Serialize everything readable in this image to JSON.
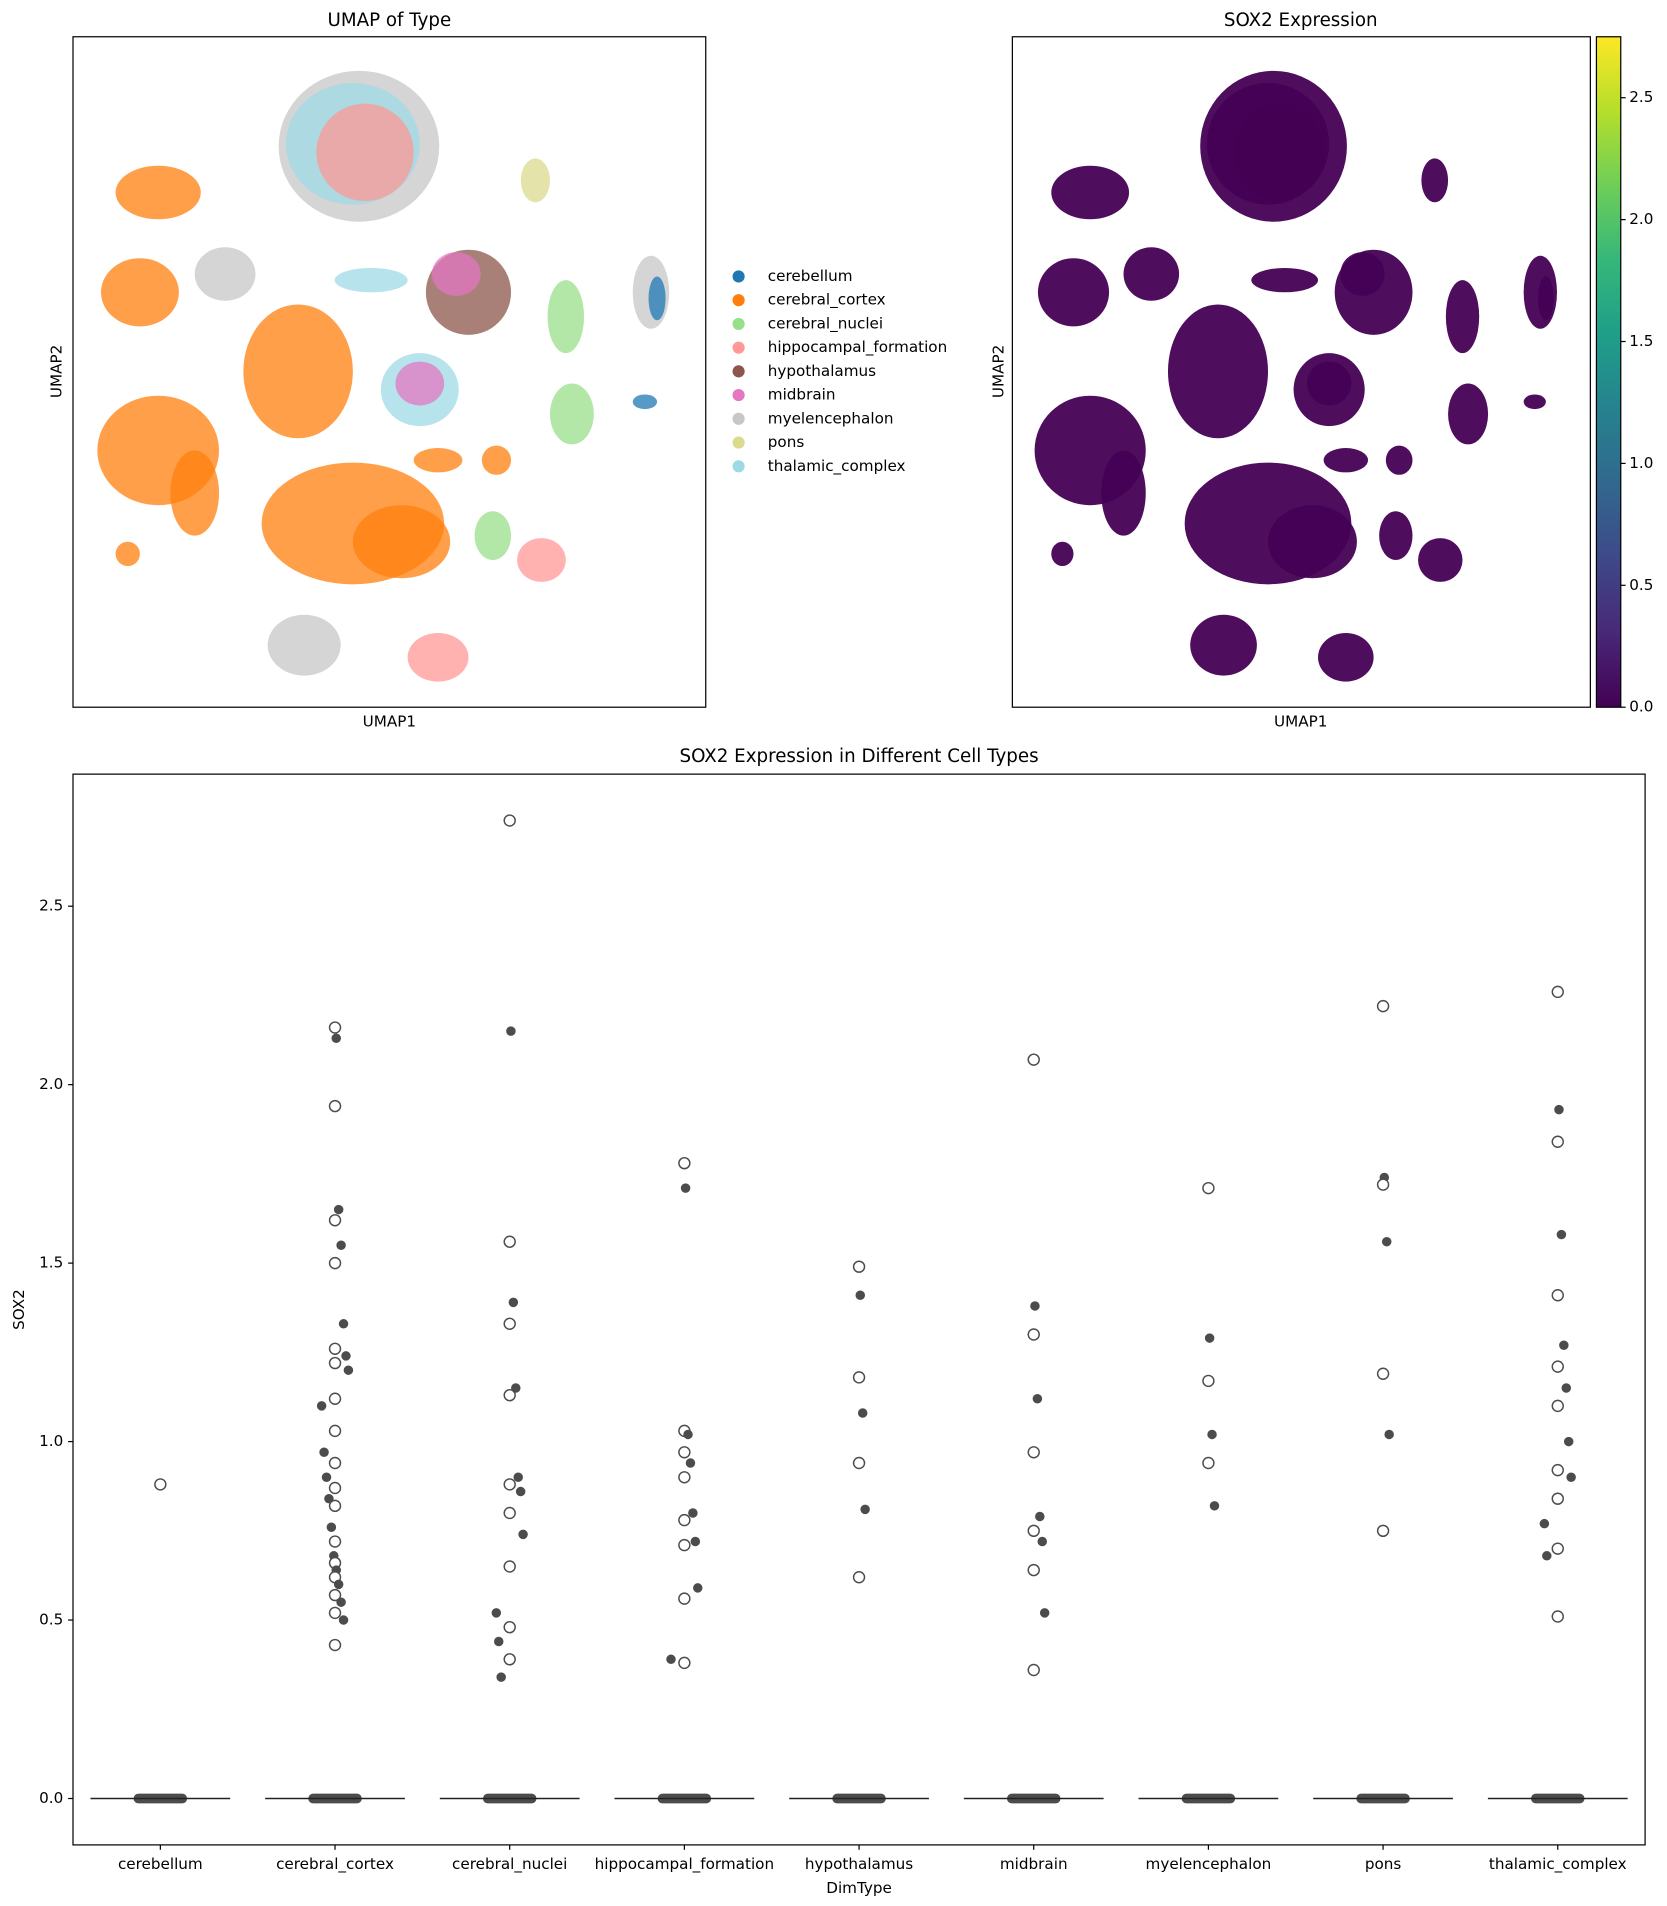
{
  "chart_data": [
    {
      "type": "scatter",
      "title": "UMAP of Type",
      "x_label": "UMAP1",
      "y_label": "UMAP2",
      "series": [
        {
          "name": "cerebellum",
          "color": "#1f77b4"
        },
        {
          "name": "cerebral_cortex",
          "color": "#ff7f0e"
        },
        {
          "name": "cerebral_nuclei",
          "color": "#98df8a"
        },
        {
          "name": "hippocampal_formation",
          "color": "#ff9896"
        },
        {
          "name": "hypothalamus",
          "color": "#8c564b"
        },
        {
          "name": "midbrain",
          "color": "#e377c2"
        },
        {
          "name": "myelencephalon",
          "color": "#c7c7c7"
        },
        {
          "name": "pons",
          "color": "#dbdb8d"
        },
        {
          "name": "thalamic_complex",
          "color": "#9edae5"
        }
      ]
    },
    {
      "type": "scatter",
      "title": "SOX2 Expression",
      "x_label": "UMAP1",
      "y_label": "UMAP2",
      "colormap": "viridis",
      "color": "#440154",
      "clim": [
        0,
        2.75
      ],
      "cticks": [
        {
          "value": 0,
          "label": "0.0"
        },
        {
          "value": 0.5,
          "label": "0.5"
        },
        {
          "value": 1,
          "label": "1.0"
        },
        {
          "value": 1.5,
          "label": "1.5"
        },
        {
          "value": 2,
          "label": "2.0"
        },
        {
          "value": 2.5,
          "label": "2.5"
        }
      ]
    },
    {
      "type": "box",
      "title": "SOX2 Expression in Different Cell Types",
      "x_label": "DimType",
      "y_label": "SOX2",
      "categories": [
        "cerebellum",
        "cerebral_cortex",
        "cerebral_nuclei",
        "hippocampal_formation",
        "hypothalamus",
        "midbrain",
        "myelencephalon",
        "pons",
        "thalamic_complex"
      ],
      "medians": [
        0,
        0,
        0,
        0,
        0,
        0,
        0,
        0,
        0
      ],
      "outliers": [
        [
          0.88
        ],
        [
          2.16,
          2.13,
          1.94,
          1.65,
          1.62,
          1.55,
          1.5,
          1.33,
          1.26,
          1.24,
          1.22,
          1.2,
          1.12,
          1.1,
          1.03,
          0.97,
          0.94,
          0.9,
          0.87,
          0.84,
          0.82,
          0.76,
          0.72,
          0.68,
          0.66,
          0.64,
          0.62,
          0.6,
          0.57,
          0.55,
          0.52,
          0.5,
          0.43
        ],
        [
          2.74,
          2.15,
          1.56,
          1.39,
          1.33,
          1.15,
          1.13,
          0.9,
          0.88,
          0.86,
          0.8,
          0.74,
          0.65,
          0.52,
          0.48,
          0.44,
          0.39,
          0.34
        ],
        [
          1.78,
          1.71,
          1.03,
          1.02,
          0.97,
          0.94,
          0.9,
          0.8,
          0.78,
          0.72,
          0.71,
          0.59,
          0.56,
          0.39,
          0.38
        ],
        [
          1.49,
          1.41,
          1.18,
          1.08,
          0.94,
          0.81,
          0.62
        ],
        [
          2.07,
          1.38,
          1.3,
          1.12,
          0.97,
          0.79,
          0.75,
          0.72,
          0.64,
          0.52,
          0.36
        ],
        [
          1.71,
          1.29,
          1.17,
          1.02,
          0.94,
          0.82
        ],
        [
          2.22,
          1.74,
          1.72,
          1.56,
          1.19,
          1.02,
          0.75
        ],
        [
          2.26,
          1.93,
          1.84,
          1.58,
          1.41,
          1.27,
          1.21,
          1.15,
          1.1,
          1.0,
          0.92,
          0.9,
          0.84,
          0.77,
          0.7,
          0.68,
          0.51
        ]
      ],
      "color": "#4c4c4c",
      "ylim": [
        -0.13,
        2.87
      ],
      "yticks": [
        {
          "value": 0,
          "label": "0.0"
        },
        {
          "value": 0.5,
          "label": "0.5"
        },
        {
          "value": 1,
          "label": "1.0"
        },
        {
          "value": 1.5,
          "label": "1.5"
        },
        {
          "value": 2,
          "label": "2.0"
        },
        {
          "value": 2.5,
          "label": "2.5"
        }
      ]
    }
  ]
}
